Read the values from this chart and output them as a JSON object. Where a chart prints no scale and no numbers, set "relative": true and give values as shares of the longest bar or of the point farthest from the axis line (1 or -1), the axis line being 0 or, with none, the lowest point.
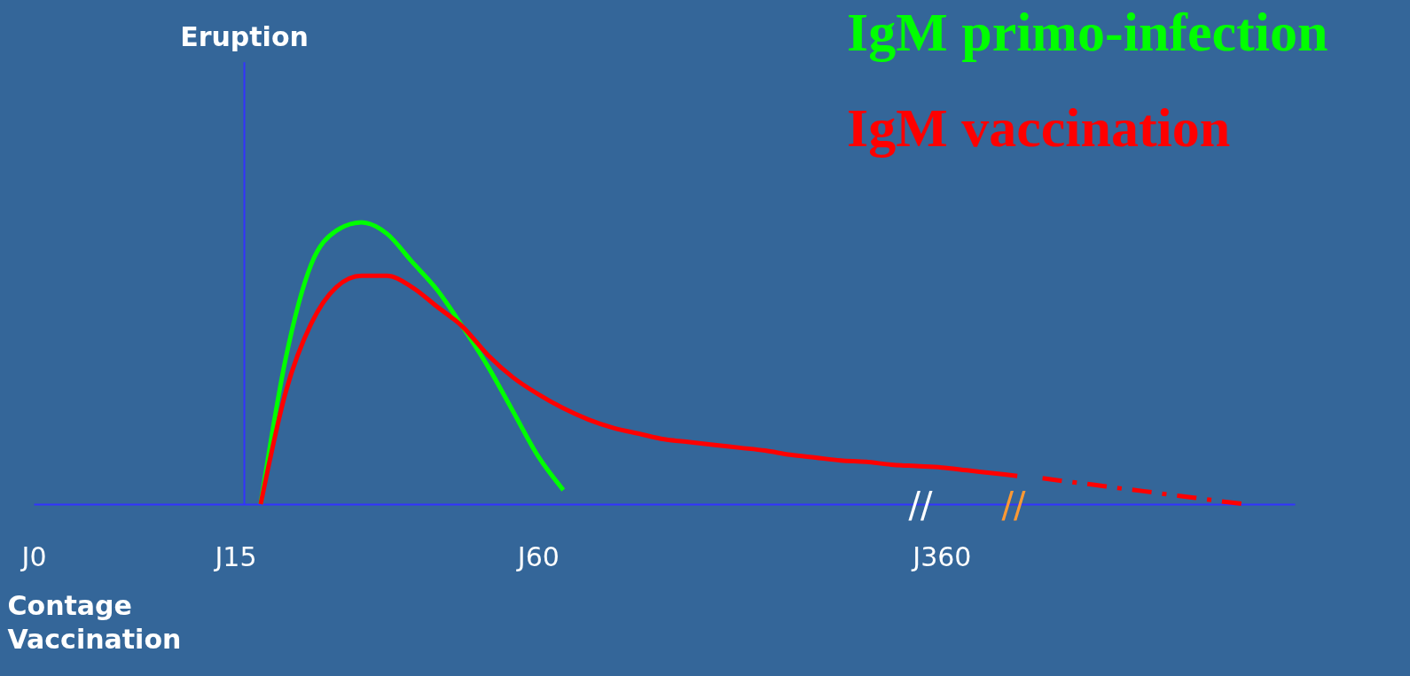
{
  "chart_data": {
    "type": "line",
    "relative": true,
    "xlabel": "Contage Vaccination",
    "categories": [
      "J0",
      null,
      null,
      null,
      null,
      null,
      null,
      null,
      "J15",
      null,
      null,
      null,
      null,
      null,
      null,
      null,
      null,
      null,
      null,
      null,
      "J60",
      null,
      null,
      null,
      null,
      null,
      null,
      null,
      null,
      null,
      null,
      null,
      null,
      null,
      null,
      null,
      "J360",
      null,
      null,
      null,
      null,
      null,
      null,
      null,
      null,
      null,
      null,
      null,
      null,
      null,
      null
    ],
    "series": [
      {
        "name": "IgM primo-infection",
        "color": "#00ff00",
        "line_style": "solid",
        "values": [
          null,
          null,
          null,
          null,
          null,
          null,
          null,
          null,
          null,
          0,
          0.52,
          0.85,
          0.97,
          1.0,
          0.96,
          0.86,
          0.76,
          0.63,
          0.49,
          0.33,
          0.17,
          0.05,
          null,
          null,
          null,
          null,
          null,
          null,
          null,
          null,
          null,
          null,
          null,
          null,
          null,
          null,
          null,
          null,
          null,
          null,
          null,
          null,
          null,
          null,
          null,
          null,
          null,
          null,
          null,
          null,
          null
        ]
      },
      {
        "name": "IgM vaccination",
        "color": "#ff0000",
        "line_style": "solid",
        "values": [
          null,
          null,
          null,
          null,
          null,
          null,
          null,
          null,
          null,
          0,
          0.4,
          0.64,
          0.77,
          0.81,
          0.81,
          0.77,
          0.7,
          0.63,
          0.53,
          0.45,
          0.39,
          0.34,
          0.3,
          0.27,
          0.25,
          0.23,
          0.22,
          0.21,
          0.2,
          0.19,
          0.175,
          0.165,
          0.155,
          0.15,
          0.14,
          0.135,
          0.13,
          0.12,
          0.11,
          0.1,
          null,
          null,
          null,
          null,
          null,
          null,
          null,
          null,
          null,
          null,
          null
        ]
      },
      {
        "color": "#ff0000",
        "line_style": "dashed",
        "values": [
          null,
          null,
          null,
          null,
          null,
          null,
          null,
          null,
          null,
          null,
          null,
          null,
          null,
          null,
          null,
          null,
          null,
          null,
          null,
          null,
          null,
          null,
          null,
          null,
          null,
          null,
          null,
          null,
          null,
          null,
          null,
          null,
          null,
          null,
          null,
          null,
          null,
          null,
          null,
          null,
          0.092,
          0.08,
          0.069,
          0.057,
          0.046,
          0.034,
          0.023,
          0.011,
          0,
          null,
          null
        ]
      }
    ],
    "ref_lines": [
      {
        "axis": "x",
        "value": "J15",
        "label": "Eruption"
      }
    ],
    "annotations": [
      "//",
      "//"
    ],
    "legend": "top right",
    "grid": false,
    "marker": "none"
  }
}
